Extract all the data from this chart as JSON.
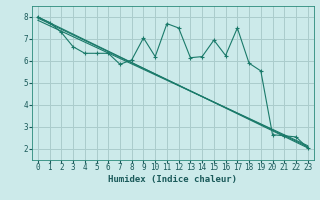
{
  "background_color": "#cceaea",
  "grid_color": "#aacccc",
  "line_color": "#1a7a6a",
  "xlabel": "Humidex (Indice chaleur)",
  "xlim": [
    -0.5,
    23.5
  ],
  "ylim": [
    1.5,
    8.5
  ],
  "yticks": [
    2,
    3,
    4,
    5,
    6,
    7,
    8
  ],
  "xticks": [
    0,
    1,
    2,
    3,
    4,
    5,
    6,
    7,
    8,
    9,
    10,
    11,
    12,
    13,
    14,
    15,
    16,
    17,
    18,
    19,
    20,
    21,
    22,
    23
  ],
  "line1_x": [
    0,
    1,
    2,
    3,
    4,
    5,
    6,
    7,
    8,
    9,
    10,
    11,
    12,
    13,
    14,
    15,
    16,
    17,
    18,
    19,
    20,
    21,
    22,
    23
  ],
  "line1_y": [
    8.0,
    7.75,
    7.3,
    6.65,
    6.35,
    6.35,
    6.35,
    5.85,
    6.05,
    7.05,
    6.2,
    7.7,
    7.5,
    6.15,
    6.2,
    6.95,
    6.25,
    7.5,
    5.9,
    5.55,
    2.65,
    2.6,
    2.55,
    2.05
  ],
  "line2_x": [
    0,
    23
  ],
  "line2_y": [
    8.0,
    2.05
  ],
  "line3_x": [
    0,
    23
  ],
  "line3_y": [
    7.85,
    2.15
  ],
  "line4_x": [
    0,
    23
  ],
  "line4_y": [
    7.95,
    2.1
  ],
  "tick_fontsize": 5.5,
  "xlabel_fontsize": 6.5
}
